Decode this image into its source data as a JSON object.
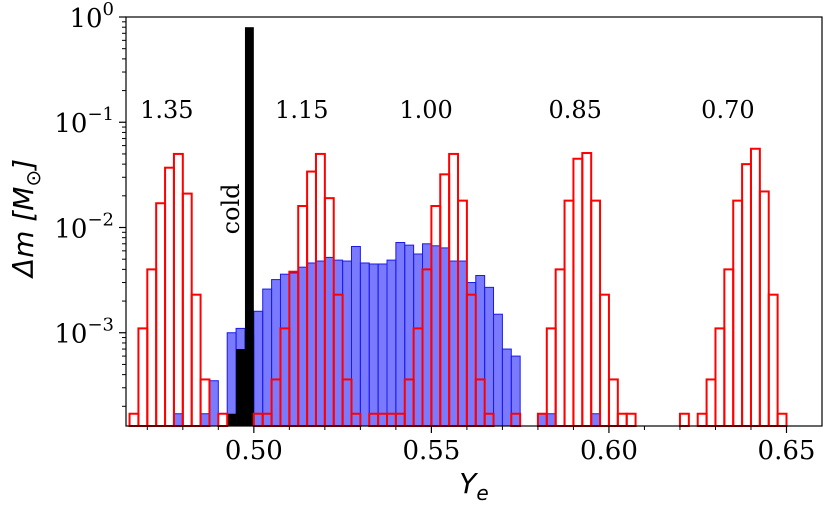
{
  "chart_data": {
    "type": "histogram",
    "title": "",
    "xlabel": "Y_e",
    "ylabel": "Δm [M_⊙]",
    "xlim": [
      0.464,
      0.66
    ],
    "ylim": [
      0.00013,
      1.0
    ],
    "yscale": "log",
    "grid": false,
    "bin_width": 0.0025,
    "x_ticks": [
      {
        "value": 0.5,
        "label": "0.50"
      },
      {
        "value": 0.55,
        "label": "0.55"
      },
      {
        "value": 0.6,
        "label": "0.60"
      },
      {
        "value": 0.65,
        "label": "0.65"
      }
    ],
    "y_ticks": [
      {
        "value": 1,
        "base": "10",
        "exp": "0"
      },
      {
        "value": 0.1,
        "base": "10",
        "exp": "−1"
      },
      {
        "value": 0.01,
        "base": "10",
        "exp": "−2"
      },
      {
        "value": 0.001,
        "base": "10",
        "exp": "−3"
      }
    ],
    "series": [
      {
        "style": "filled",
        "color": "#3333ff",
        "edge": "#1a1aee",
        "bin_width": 0.0025,
        "bins": [
          [
            0.4775,
            0.00017
          ],
          [
            0.485,
            0.00017
          ],
          [
            0.4875,
            0.00035
          ],
          [
            0.4925,
            0.001
          ],
          [
            0.495,
            0.0011
          ],
          [
            0.4975,
            0.00095
          ],
          [
            0.5,
            0.0016
          ],
          [
            0.5025,
            0.0026
          ],
          [
            0.505,
            0.0032
          ],
          [
            0.5075,
            0.0036
          ],
          [
            0.51,
            0.0037
          ],
          [
            0.5125,
            0.0042
          ],
          [
            0.515,
            0.0046
          ],
          [
            0.5175,
            0.0048
          ],
          [
            0.52,
            0.0052
          ],
          [
            0.5225,
            0.0049
          ],
          [
            0.525,
            0.0048
          ],
          [
            0.5275,
            0.0066
          ],
          [
            0.53,
            0.0046
          ],
          [
            0.5325,
            0.0045
          ],
          [
            0.535,
            0.0045
          ],
          [
            0.5375,
            0.0049
          ],
          [
            0.54,
            0.0072
          ],
          [
            0.5425,
            0.0068
          ],
          [
            0.545,
            0.0056
          ],
          [
            0.5475,
            0.007
          ],
          [
            0.55,
            0.0067
          ],
          [
            0.5525,
            0.0064
          ],
          [
            0.555,
            0.0048
          ],
          [
            0.5575,
            0.0048
          ],
          [
            0.56,
            0.003
          ],
          [
            0.5625,
            0.0035
          ],
          [
            0.565,
            0.0027
          ],
          [
            0.5675,
            0.0015
          ],
          [
            0.57,
            0.0007
          ],
          [
            0.5725,
            0.0006
          ],
          [
            0.58,
            0.00017
          ],
          [
            0.5825,
            0.00017
          ],
          [
            0.595,
            0.00017
          ]
        ]
      },
      {
        "style": "filled",
        "color": "#000000",
        "edge": "#000000",
        "bin_width": 0.0025,
        "bins": [
          [
            0.4925,
            0.00017
          ],
          [
            0.495,
            0.0007
          ],
          [
            0.4975,
            0.8
          ]
        ]
      },
      {
        "style": "step",
        "color": "#ff0000",
        "bin_width": 0.0025,
        "bins": [
          [
            0.465,
            0.00017
          ],
          [
            0.4675,
            0.0011
          ],
          [
            0.47,
            0.004
          ],
          [
            0.4725,
            0.017
          ],
          [
            0.475,
            0.037
          ],
          [
            0.4775,
            0.05
          ],
          [
            0.48,
            0.021
          ],
          [
            0.4825,
            0.0023
          ],
          [
            0.485,
            0.00036
          ],
          [
            0.49,
            0.00017
          ]
        ]
      },
      {
        "style": "step",
        "color": "#ff0000",
        "bin_width": 0.0025,
        "bins": [
          [
            0.5,
            0.00017
          ],
          [
            0.5025,
            0.00017
          ],
          [
            0.505,
            0.00036
          ],
          [
            0.5075,
            0.0011
          ],
          [
            0.51,
            0.0038
          ],
          [
            0.5125,
            0.016
          ],
          [
            0.515,
            0.034
          ],
          [
            0.5175,
            0.05
          ],
          [
            0.52,
            0.019
          ],
          [
            0.5225,
            0.0023
          ],
          [
            0.525,
            0.00036
          ],
          [
            0.5275,
            0.00017
          ],
          [
            0.5325,
            0.00017
          ],
          [
            0.535,
            0.00017
          ]
        ]
      },
      {
        "style": "step",
        "color": "#ff0000",
        "bin_width": 0.0025,
        "bins": [
          [
            0.5375,
            0.00017
          ],
          [
            0.54,
            0.00017
          ],
          [
            0.5425,
            0.00036
          ],
          [
            0.545,
            0.0011
          ],
          [
            0.5475,
            0.004
          ],
          [
            0.55,
            0.016
          ],
          [
            0.5525,
            0.032
          ],
          [
            0.555,
            0.05
          ],
          [
            0.5575,
            0.018
          ],
          [
            0.56,
            0.0023
          ],
          [
            0.5625,
            0.00036
          ],
          [
            0.565,
            0.00017
          ],
          [
            0.5725,
            0.00017
          ]
        ]
      },
      {
        "style": "step",
        "color": "#ff0000",
        "bin_width": 0.0025,
        "bins": [
          [
            0.58,
            0.00017
          ],
          [
            0.5825,
            0.0011
          ],
          [
            0.585,
            0.004
          ],
          [
            0.5875,
            0.018
          ],
          [
            0.59,
            0.045
          ],
          [
            0.5925,
            0.051
          ],
          [
            0.595,
            0.018
          ],
          [
            0.5975,
            0.0023
          ],
          [
            0.6,
            0.00036
          ],
          [
            0.6025,
            0.00017
          ],
          [
            0.605,
            0.00017
          ]
        ]
      },
      {
        "style": "step",
        "color": "#ff0000",
        "bin_width": 0.0025,
        "bins": [
          [
            0.62,
            0.00017
          ],
          [
            0.625,
            0.00017
          ],
          [
            0.6275,
            0.00036
          ],
          [
            0.63,
            0.0011
          ],
          [
            0.6325,
            0.004
          ],
          [
            0.635,
            0.018
          ],
          [
            0.6375,
            0.04
          ],
          [
            0.64,
            0.056
          ],
          [
            0.6425,
            0.022
          ],
          [
            0.645,
            0.0023
          ],
          [
            0.6475,
            0.00017
          ]
        ]
      }
    ],
    "annotations": [
      {
        "text": "1.35",
        "x": 0.4755,
        "y": 0.11
      },
      {
        "text": "1.15",
        "x": 0.5135,
        "y": 0.11
      },
      {
        "text": "1.00",
        "x": 0.5485,
        "y": 0.11
      },
      {
        "text": "0.85",
        "x": 0.5905,
        "y": 0.11
      },
      {
        "text": "0.70",
        "x": 0.6335,
        "y": 0.11
      },
      {
        "text": "cold",
        "x": 0.4935,
        "y": 0.015,
        "rotate": -90
      }
    ]
  }
}
